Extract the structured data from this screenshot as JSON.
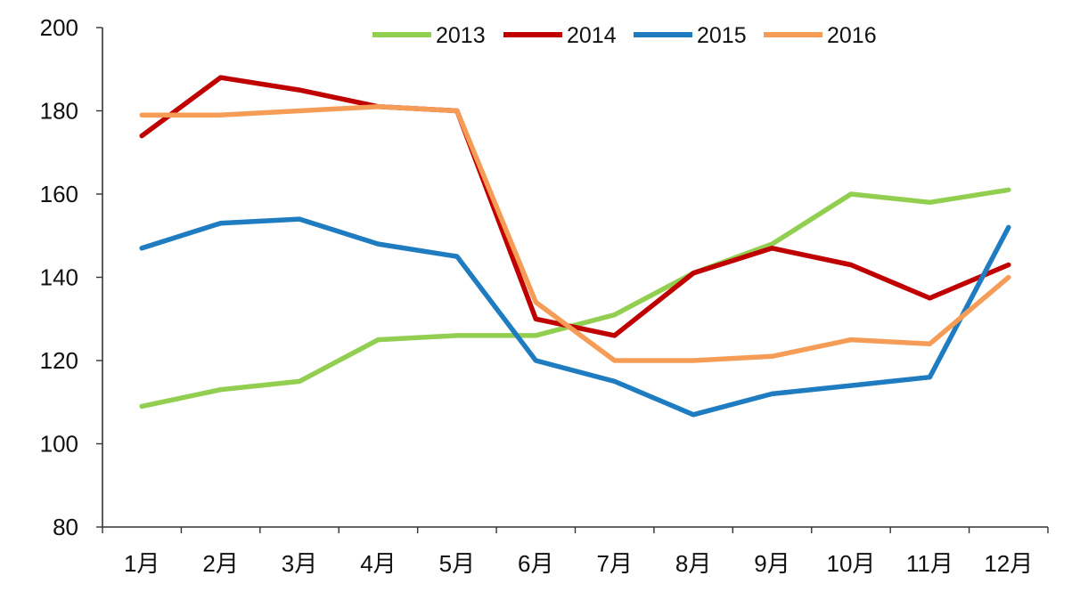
{
  "chart_data": {
    "type": "line",
    "categories": [
      "1月",
      "2月",
      "3月",
      "4月",
      "5月",
      "6月",
      "7月",
      "8月",
      "9月",
      "10月",
      "11月",
      "12月"
    ],
    "ylim": [
      80,
      200
    ],
    "yticks": [
      80,
      100,
      120,
      140,
      160,
      180,
      200
    ],
    "grid": false,
    "legend_position": "top-center",
    "series": [
      {
        "name": "2013",
        "color": "#92cf50",
        "values": [
          109,
          113,
          115,
          125,
          126,
          126,
          131,
          141,
          148,
          160,
          158,
          161
        ]
      },
      {
        "name": "2014",
        "color": "#c00000",
        "values": [
          174,
          188,
          185,
          181,
          180,
          130,
          126,
          141,
          147,
          143,
          135,
          143
        ]
      },
      {
        "name": "2015",
        "color": "#1f7cc1",
        "values": [
          147,
          153,
          154,
          148,
          145,
          120,
          115,
          107,
          112,
          114,
          116,
          152
        ]
      },
      {
        "name": "2016",
        "color": "#f59d56",
        "values": [
          179,
          179,
          180,
          181,
          180,
          134,
          120,
          120,
          121,
          125,
          124,
          140
        ]
      }
    ]
  }
}
